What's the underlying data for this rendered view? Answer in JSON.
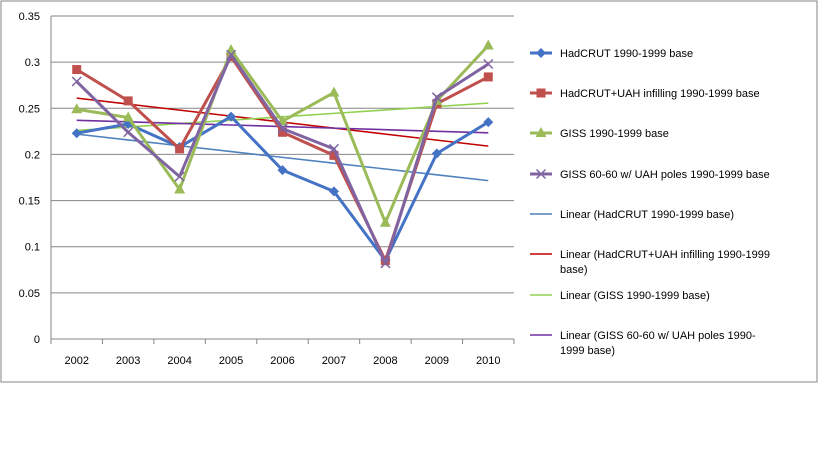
{
  "chart_data": {
    "type": "line",
    "categories": [
      "2002",
      "2003",
      "2004",
      "2005",
      "2006",
      "2007",
      "2008",
      "2009",
      "2010"
    ],
    "ylim": [
      0,
      0.35
    ],
    "yticks": [
      "0",
      "0.05",
      "0.1",
      "0.15",
      "0.2",
      "0.25",
      "0.3",
      "0.35"
    ],
    "grid": "horizontal",
    "legend_position": "right",
    "series": [
      {
        "name": "HadCRUT 1990-1999 base",
        "color": "#4472C4",
        "marker": "diamond",
        "values": [
          0.223,
          0.233,
          0.208,
          0.241,
          0.183,
          0.16,
          0.085,
          0.201,
          0.235
        ]
      },
      {
        "name": "HadCRUT+UAH infilling 1990-1999 base",
        "color": "#C0504D",
        "marker": "square",
        "values": [
          0.292,
          0.258,
          0.206,
          0.306,
          0.224,
          0.199,
          0.085,
          0.255,
          0.284
        ]
      },
      {
        "name": "GISS 1990-1999 base",
        "color": "#9BBB59",
        "marker": "triangle",
        "values": [
          0.249,
          0.24,
          0.162,
          0.313,
          0.236,
          0.267,
          0.126,
          0.258,
          0.318
        ]
      },
      {
        "name": "GISS 60-60 w/ UAH poles 1990-1999 base",
        "color": "#8064A2",
        "marker": "x",
        "values": [
          0.279,
          0.224,
          0.176,
          0.308,
          0.228,
          0.206,
          0.082,
          0.262,
          0.298
        ]
      },
      {
        "name": "Linear (HadCRUT 1990-1999 base)",
        "color": "#4F81BD",
        "marker": "none",
        "trend": true,
        "values": [
          0.222,
          0.2157,
          0.2094,
          0.2031,
          0.1968,
          0.1905,
          0.1842,
          0.1779,
          0.1716
        ]
      },
      {
        "name": "Linear (HadCRUT+UAH infilling 1990-1999 base)",
        "color": "#C00000",
        "marker": "none",
        "trend": true,
        "values": [
          0.261,
          0.2545,
          0.248,
          0.2415,
          0.235,
          0.2285,
          0.222,
          0.2155,
          0.209
        ]
      },
      {
        "name": "Linear (GISS 1990-1999 base)",
        "color": "#92D050",
        "marker": "none",
        "trend": true,
        "values": [
          0.226,
          0.2297,
          0.2334,
          0.2371,
          0.2408,
          0.2445,
          0.2482,
          0.2519,
          0.2556
        ]
      },
      {
        "name": "Linear (GISS 60-60 w/ UAH poles 1990-1999 base)",
        "color": "#7030A0",
        "marker": "none",
        "trend": true,
        "values": [
          0.237,
          0.2353,
          0.2336,
          0.2319,
          0.2302,
          0.2285,
          0.2268,
          0.2251,
          0.2234
        ]
      }
    ],
    "legend_lines": [
      [
        "HadCRUT 1990-1999 base"
      ],
      [
        "HadCRUT+UAH infilling 1990-1999 base"
      ],
      [
        "GISS 1990-1999 base"
      ],
      [
        "GISS 60-60 w/ UAH poles 1990-1999 base"
      ],
      [
        "Linear (HadCRUT 1990-1999 base)"
      ],
      [
        "Linear (HadCRUT+UAH infilling 1990-1999",
        "base)"
      ],
      [
        "Linear (GISS 1990-1999 base)"
      ],
      [
        "Linear (GISS 60-60 w/ UAH poles 1990-",
        "1999 base)"
      ]
    ]
  }
}
